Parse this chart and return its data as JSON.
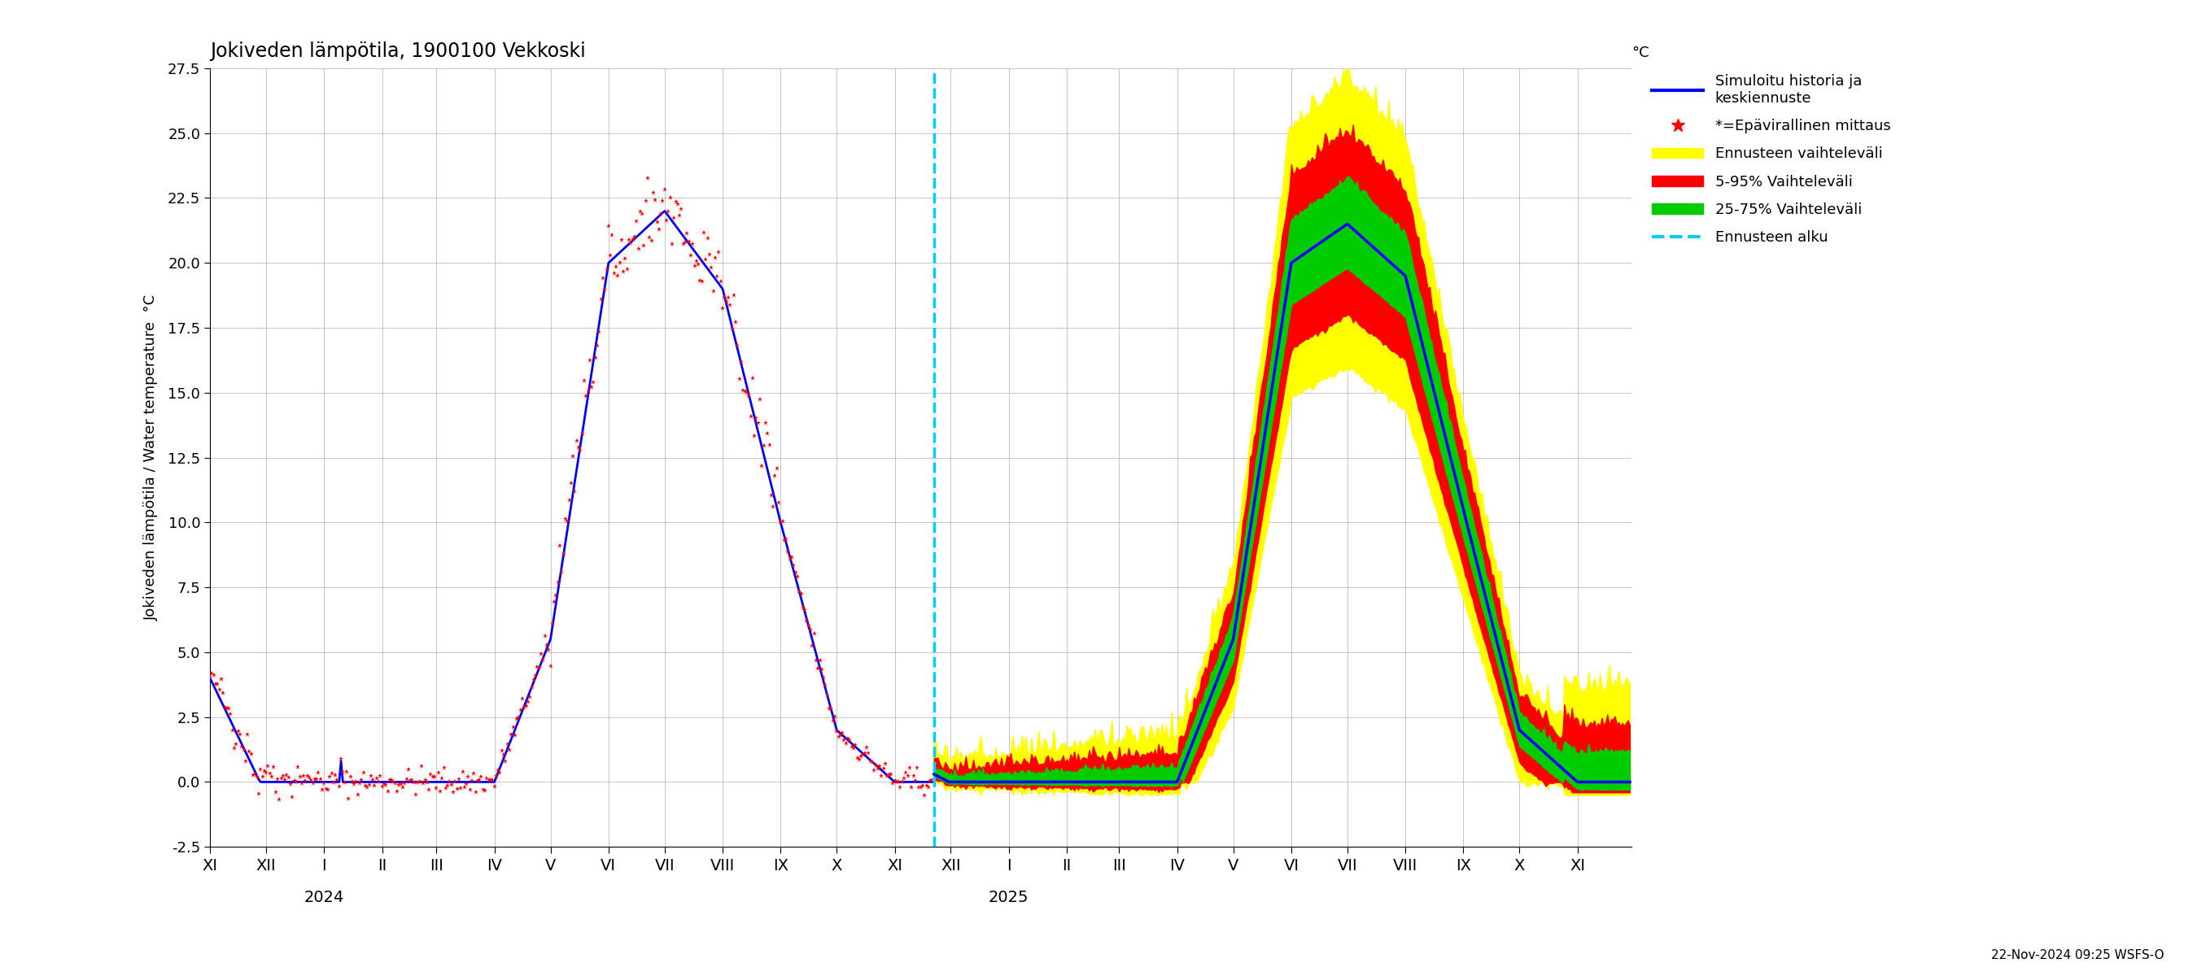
{
  "title": "Jokiveden lämpötila, 1900100 Vekkoski",
  "ylabel": "Jokiveden lämpötila / Water temperature  °C",
  "ylabel_right": "°C",
  "ylim": [
    -2.5,
    27.5
  ],
  "yticks": [
    -2.5,
    0.0,
    2.5,
    5.0,
    7.5,
    10.0,
    12.5,
    15.0,
    17.5,
    20.0,
    22.5,
    25.0,
    27.5
  ],
  "bg_color": "#ffffff",
  "grid_color": "#aaaaaa",
  "timestamp_label": "22-Nov-2024 09:25 WSFS-O",
  "colors": {
    "simulated": "#0000ff",
    "measured": "#ff0000",
    "forecast_range": "#ffff00",
    "band_5_95": "#ff0000",
    "band_25_75": "#00cc00",
    "forecast_line": "#0000ff",
    "forecast_start": "#00ccff"
  },
  "legend_labels": [
    "Simuloitu historia ja\nkeskiennuste",
    "*=Epävirallinen mittaus",
    "Ennusteen vaihteleväli",
    "5-95% Vaihteleväli",
    "25-75% Vaihteleväli",
    "Ennusteen alku"
  ]
}
